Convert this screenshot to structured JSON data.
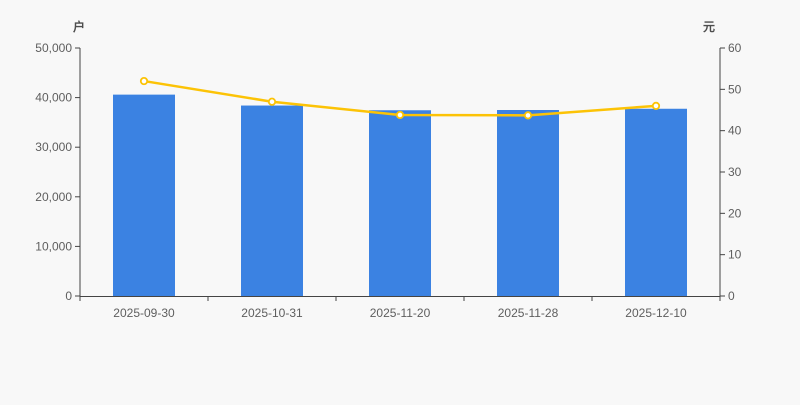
{
  "chart": {
    "background": "#f8f8f8",
    "axis_line_color": "#444444",
    "tick_text_color": "#5e5e5e",
    "axis_name_color": "#4d4d4d"
  },
  "chart_data": {
    "type": "bar",
    "categories": [
      "2025-09-30",
      "2025-10-31",
      "2025-11-20",
      "2025-11-28",
      "2025-12-10"
    ],
    "series": [
      {
        "type": "bar",
        "axis": "left",
        "unit": "户",
        "color": "#3b82e2",
        "values": [
          40600,
          38400,
          37450,
          37500,
          37750
        ]
      },
      {
        "type": "line",
        "axis": "right",
        "unit": "元",
        "color": "#fcc306",
        "marker_fill": "#ffffff",
        "values": [
          52.0,
          47.0,
          43.8,
          43.7,
          46.0
        ]
      }
    ],
    "left_axis": {
      "name": "户",
      "min": 0,
      "max": 50000,
      "tick_step": 10000,
      "tick_labels": [
        "0",
        "10,000",
        "20,000",
        "30,000",
        "40,000",
        "50,000"
      ]
    },
    "right_axis": {
      "name": "元",
      "min": 0,
      "max": 60,
      "tick_step": 10,
      "tick_labels": [
        "0",
        "10",
        "20",
        "30",
        "40",
        "50",
        "60"
      ]
    },
    "grid": false,
    "legend": null
  }
}
